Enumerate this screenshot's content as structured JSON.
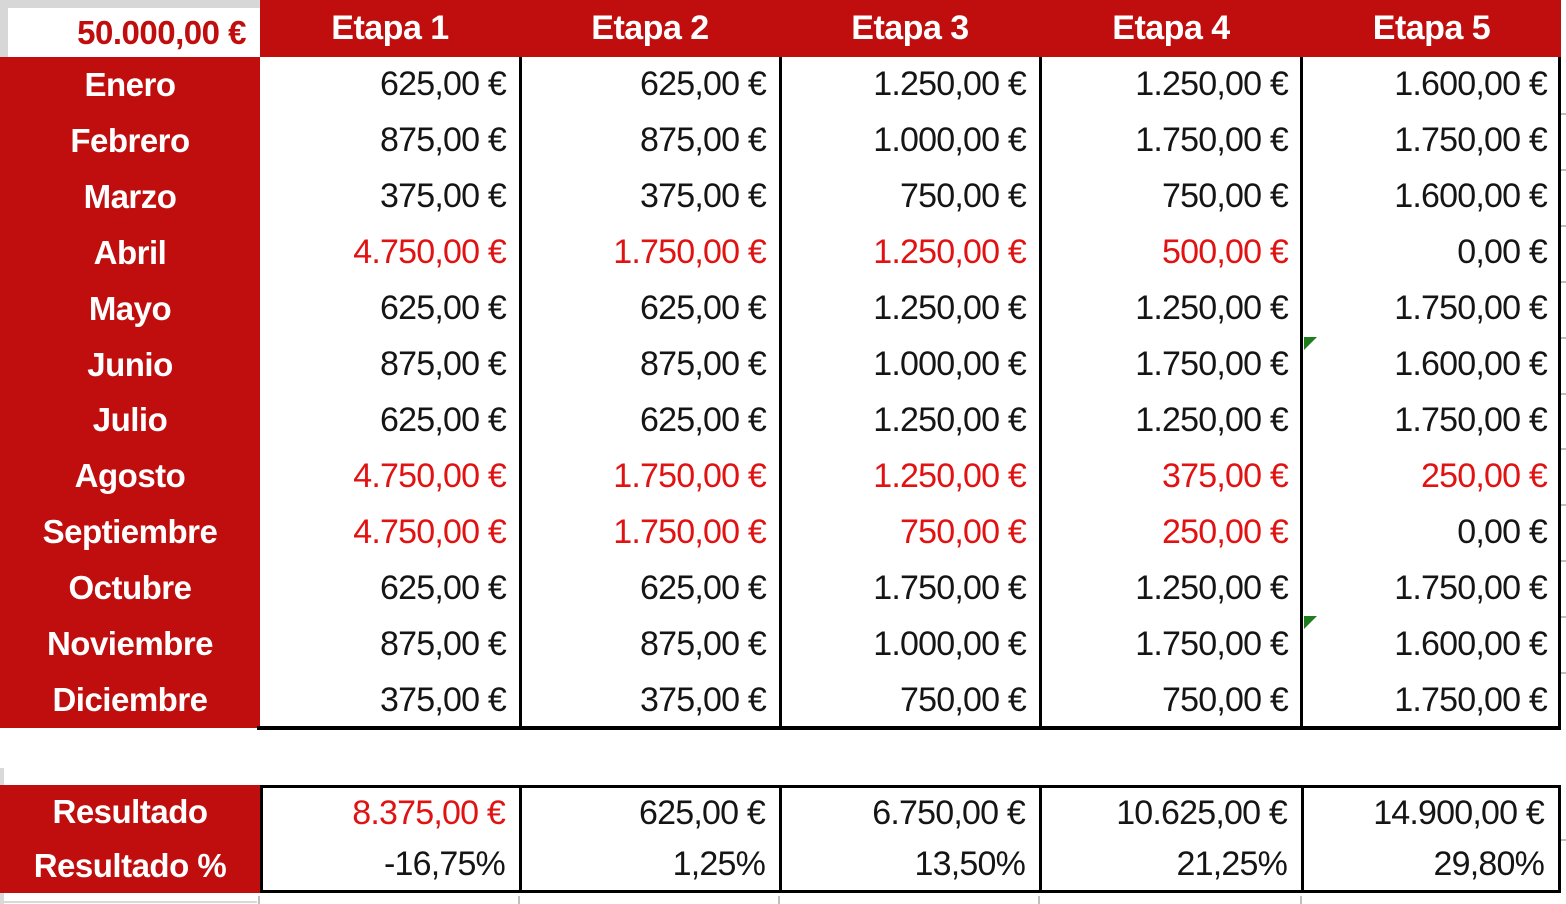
{
  "colors": {
    "red_background": "#C00D0D",
    "red_value_text": "#E11212",
    "corner_text": "#C00D0D",
    "flag_green": "#1E7E1E",
    "grid_line_black": "#000000",
    "outside_gray": "#D7D7D7"
  },
  "corner": {
    "budget": "50.000,00 €"
  },
  "header": {
    "etapas": [
      "Etapa 1",
      "Etapa 2",
      "Etapa 3",
      "Etapa 4",
      "Etapa 5"
    ]
  },
  "rows": [
    {
      "month": "Enero",
      "cells": [
        {
          "t": "625,00 €"
        },
        {
          "t": "625,00 €"
        },
        {
          "t": "1.250,00 €"
        },
        {
          "t": "1.250,00 €"
        },
        {
          "t": "1.600,00 €"
        }
      ]
    },
    {
      "month": "Febrero",
      "cells": [
        {
          "t": "875,00 €"
        },
        {
          "t": "875,00 €"
        },
        {
          "t": "1.000,00 €"
        },
        {
          "t": "1.750,00 €"
        },
        {
          "t": "1.750,00 €"
        }
      ]
    },
    {
      "month": "Marzo",
      "cells": [
        {
          "t": "375,00 €"
        },
        {
          "t": "375,00 €"
        },
        {
          "t": "750,00 €"
        },
        {
          "t": "750,00 €"
        },
        {
          "t": "1.600,00 €"
        }
      ]
    },
    {
      "month": "Abril",
      "cells": [
        {
          "t": "4.750,00 €",
          "red": true
        },
        {
          "t": "1.750,00 €",
          "red": true
        },
        {
          "t": "1.250,00 €",
          "red": true
        },
        {
          "t": "500,00 €",
          "red": true
        },
        {
          "t": "0,00 €"
        }
      ]
    },
    {
      "month": "Mayo",
      "cells": [
        {
          "t": "625,00 €"
        },
        {
          "t": "625,00 €"
        },
        {
          "t": "1.250,00 €"
        },
        {
          "t": "1.250,00 €"
        },
        {
          "t": "1.750,00 €"
        }
      ]
    },
    {
      "month": "Junio",
      "cells": [
        {
          "t": "875,00 €"
        },
        {
          "t": "875,00 €"
        },
        {
          "t": "1.000,00 €"
        },
        {
          "t": "1.750,00 €"
        },
        {
          "t": "1.600,00 €",
          "flag": true
        }
      ]
    },
    {
      "month": "Julio",
      "cells": [
        {
          "t": "625,00 €"
        },
        {
          "t": "625,00 €"
        },
        {
          "t": "1.250,00 €"
        },
        {
          "t": "1.250,00 €"
        },
        {
          "t": "1.750,00 €"
        }
      ]
    },
    {
      "month": "Agosto",
      "cells": [
        {
          "t": "4.750,00 €",
          "red": true
        },
        {
          "t": "1.750,00 €",
          "red": true
        },
        {
          "t": "1.250,00 €",
          "red": true
        },
        {
          "t": "375,00 €",
          "red": true
        },
        {
          "t": "250,00 €",
          "red": true
        }
      ]
    },
    {
      "month": "Septiembre",
      "cells": [
        {
          "t": "4.750,00 €",
          "red": true
        },
        {
          "t": "1.750,00 €",
          "red": true
        },
        {
          "t": "750,00 €",
          "red": true
        },
        {
          "t": "250,00 €",
          "red": true
        },
        {
          "t": "0,00 €"
        }
      ]
    },
    {
      "month": "Octubre",
      "cells": [
        {
          "t": "625,00 €"
        },
        {
          "t": "625,00 €"
        },
        {
          "t": "1.750,00 €"
        },
        {
          "t": "1.250,00 €"
        },
        {
          "t": "1.750,00 €"
        }
      ]
    },
    {
      "month": "Noviembre",
      "cells": [
        {
          "t": "875,00 €"
        },
        {
          "t": "875,00 €"
        },
        {
          "t": "1.000,00 €"
        },
        {
          "t": "1.750,00 €"
        },
        {
          "t": "1.600,00 €",
          "flag": true
        }
      ]
    },
    {
      "month": "Diciembre",
      "cells": [
        {
          "t": "375,00 €"
        },
        {
          "t": "375,00 €"
        },
        {
          "t": "750,00 €"
        },
        {
          "t": "750,00 €"
        },
        {
          "t": "1.750,00 €"
        }
      ]
    }
  ],
  "results": {
    "label": "Resultado",
    "label_pct": "Resultado %",
    "values": [
      {
        "t": "8.375,00 €",
        "red": true
      },
      {
        "t": "625,00 €"
      },
      {
        "t": "6.750,00 €"
      },
      {
        "t": "10.625,00 €"
      },
      {
        "t": "14.900,00 €"
      }
    ],
    "pct": [
      "-16,75%",
      "1,25%",
      "13,50%",
      "21,25%",
      "29,80%"
    ]
  }
}
